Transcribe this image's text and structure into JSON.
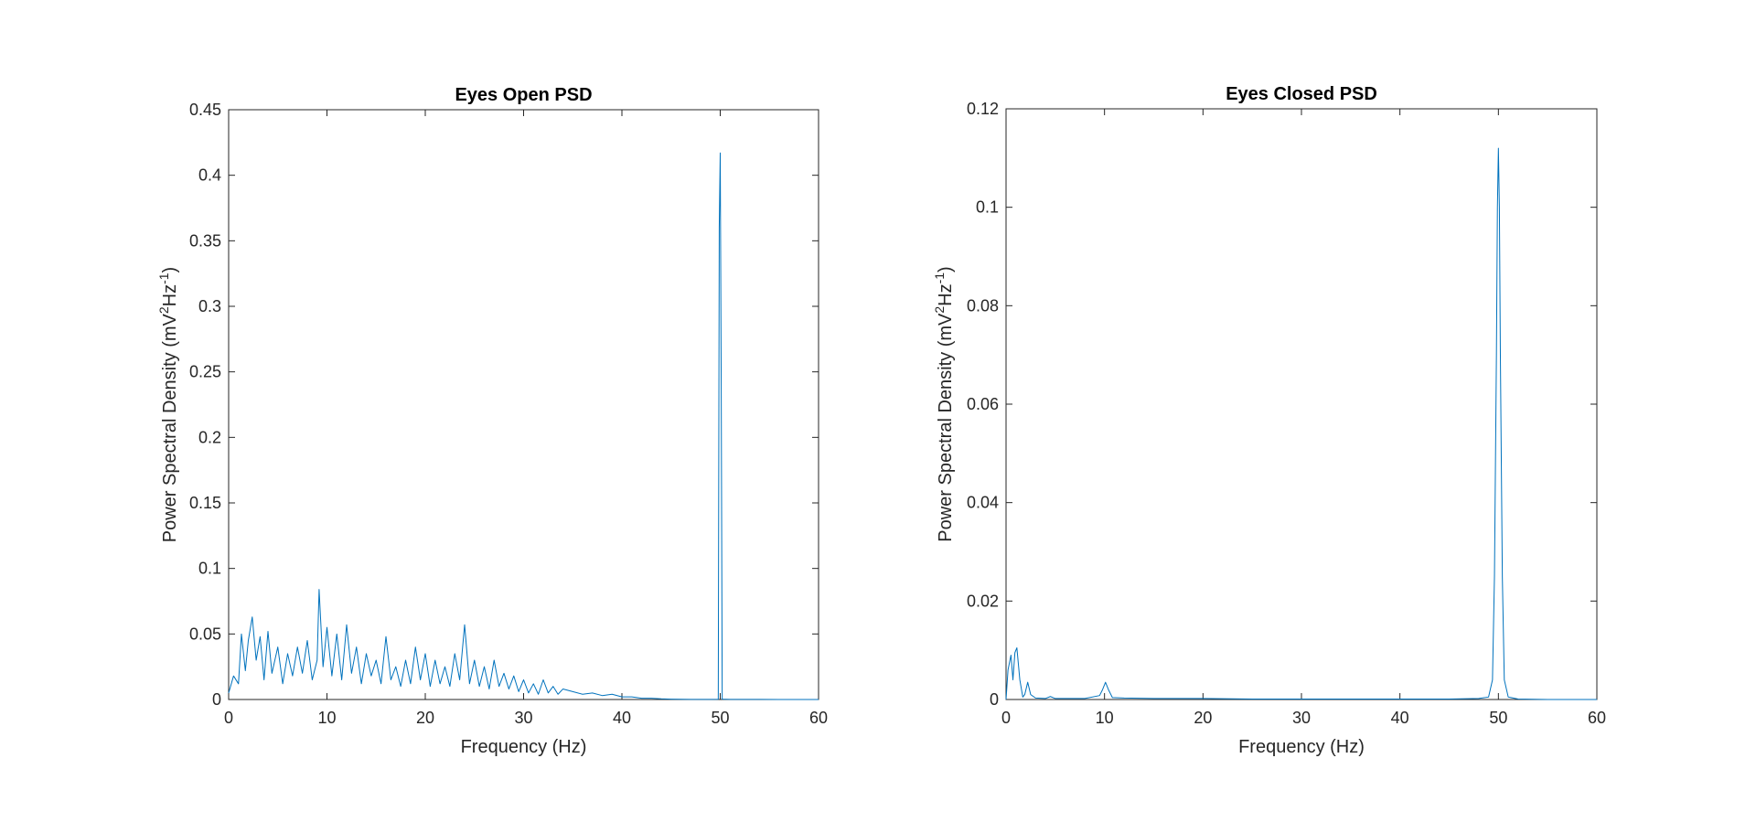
{
  "figure": {
    "colors": {
      "series": "#0072BD",
      "axes": "#262626",
      "background": "#ffffff"
    }
  },
  "chart_data": [
    {
      "type": "line",
      "title": "Eyes Open PSD",
      "xlabel": "Frequency (Hz)",
      "ylabel_text": "Power Spectral Density (mV",
      "ylabel_sup1": "2",
      "ylabel_mid": "Hz",
      "ylabel_sup2": "-1",
      "ylabel_end": ")",
      "xlim": [
        0,
        60
      ],
      "ylim": [
        0,
        0.45
      ],
      "xticks": [
        0,
        10,
        20,
        30,
        40,
        50,
        60
      ],
      "yticks": [
        0,
        0.05,
        0.1,
        0.15,
        0.2,
        0.25,
        0.3,
        0.35,
        0.4,
        0.45
      ],
      "xtick_labels": [
        "0",
        "10",
        "20",
        "30",
        "40",
        "50",
        "60"
      ],
      "ytick_labels": [
        "0",
        "0.05",
        "0.1",
        "0.15",
        "0.2",
        "0.25",
        "0.3",
        "0.35",
        "0.4",
        "0.45"
      ],
      "grid": false,
      "description_of_series": "dense noisy broadband spectrum decaying to ~0 by 45 Hz with a sharp line at 50 Hz",
      "x": [
        0,
        0.5,
        1.0,
        1.3,
        1.7,
        2.0,
        2.4,
        2.8,
        3.2,
        3.6,
        4.0,
        4.4,
        5.0,
        5.5,
        6.0,
        6.5,
        7.0,
        7.5,
        8.0,
        8.5,
        9.0,
        9.2,
        9.6,
        10.0,
        10.5,
        11.0,
        11.5,
        12.0,
        12.5,
        13.0,
        13.5,
        14.0,
        14.5,
        15.0,
        15.5,
        16.0,
        16.5,
        17.0,
        17.5,
        18.0,
        18.5,
        19.0,
        19.5,
        20.0,
        20.5,
        21.0,
        21.5,
        22.0,
        22.5,
        23.0,
        23.5,
        24.0,
        24.5,
        25.0,
        25.5,
        26.0,
        26.5,
        27.0,
        27.5,
        28.0,
        28.5,
        29.0,
        29.5,
        30.0,
        30.5,
        31.0,
        31.5,
        32.0,
        32.5,
        33.0,
        33.5,
        34.0,
        35.0,
        36.0,
        37.0,
        38.0,
        39.0,
        40.0,
        41.0,
        42.0,
        43.0,
        44.0,
        45.0,
        46.0,
        47.0,
        48.0,
        49.0,
        49.8,
        49.9,
        50.0,
        50.1,
        50.2,
        51.0,
        52.0,
        54.0,
        56.0,
        58.0,
        60.0
      ],
      "y": [
        0.005,
        0.018,
        0.012,
        0.05,
        0.022,
        0.045,
        0.063,
        0.03,
        0.048,
        0.015,
        0.052,
        0.02,
        0.04,
        0.012,
        0.035,
        0.018,
        0.04,
        0.02,
        0.045,
        0.015,
        0.03,
        0.084,
        0.025,
        0.055,
        0.018,
        0.05,
        0.015,
        0.057,
        0.02,
        0.04,
        0.012,
        0.035,
        0.018,
        0.03,
        0.012,
        0.048,
        0.015,
        0.025,
        0.01,
        0.03,
        0.012,
        0.04,
        0.015,
        0.035,
        0.01,
        0.03,
        0.012,
        0.025,
        0.01,
        0.035,
        0.015,
        0.057,
        0.012,
        0.03,
        0.01,
        0.025,
        0.008,
        0.03,
        0.01,
        0.02,
        0.008,
        0.018,
        0.006,
        0.015,
        0.005,
        0.012,
        0.004,
        0.015,
        0.005,
        0.01,
        0.004,
        0.008,
        0.006,
        0.004,
        0.005,
        0.003,
        0.004,
        0.002,
        0.002,
        0.001,
        0.001,
        0.0005,
        0.0003,
        0.0002,
        0.0001,
        0.0001,
        0.0001,
        0.0002,
        0.36,
        0.417,
        0.24,
        0.0003,
        0.0001,
        0.0001,
        0.0001,
        0.0,
        0.0,
        0.0
      ]
    },
    {
      "type": "line",
      "title": "Eyes Closed PSD",
      "xlabel": "Frequency (Hz)",
      "ylabel_text": "Power Spectral Density (mV",
      "ylabel_sup1": "2",
      "ylabel_mid": "Hz",
      "ylabel_sup2": "-1",
      "ylabel_end": ")",
      "xlim": [
        0,
        60
      ],
      "ylim": [
        0,
        0.12
      ],
      "xticks": [
        0,
        10,
        20,
        30,
        40,
        50,
        60
      ],
      "yticks": [
        0,
        0.02,
        0.04,
        0.06,
        0.08,
        0.1,
        0.12
      ],
      "xtick_labels": [
        "0",
        "10",
        "20",
        "30",
        "40",
        "50",
        "60"
      ],
      "ytick_labels": [
        "0",
        "0.02",
        "0.04",
        "0.06",
        "0.08",
        "0.1",
        "0.12"
      ],
      "grid": false,
      "x": [
        0,
        0.2,
        0.5,
        0.7,
        0.9,
        1.1,
        1.4,
        1.7,
        1.9,
        2.2,
        2.5,
        3.0,
        4.0,
        4.5,
        5.0,
        6.0,
        8.0,
        9.5,
        9.8,
        10.1,
        10.4,
        10.8,
        12.0,
        15.0,
        20.0,
        25.0,
        30.0,
        35.0,
        40.0,
        45.0,
        48.0,
        49.0,
        49.4,
        49.6,
        49.8,
        49.9,
        50.0,
        50.1,
        50.2,
        50.4,
        50.6,
        51.0,
        52.0,
        55.0,
        60.0
      ],
      "y": [
        0.0,
        0.006,
        0.009,
        0.004,
        0.0095,
        0.0105,
        0.004,
        0.0005,
        0.001,
        0.0035,
        0.001,
        0.0003,
        0.0002,
        0.0006,
        0.0002,
        0.0002,
        0.0002,
        0.0008,
        0.002,
        0.0035,
        0.002,
        0.0004,
        0.0003,
        0.0002,
        0.0002,
        0.0001,
        0.0001,
        0.0001,
        0.0001,
        0.0001,
        0.0002,
        0.0005,
        0.004,
        0.025,
        0.07,
        0.1,
        0.112,
        0.1,
        0.07,
        0.025,
        0.004,
        0.0005,
        0.0001,
        0.0,
        0.0
      ]
    }
  ]
}
